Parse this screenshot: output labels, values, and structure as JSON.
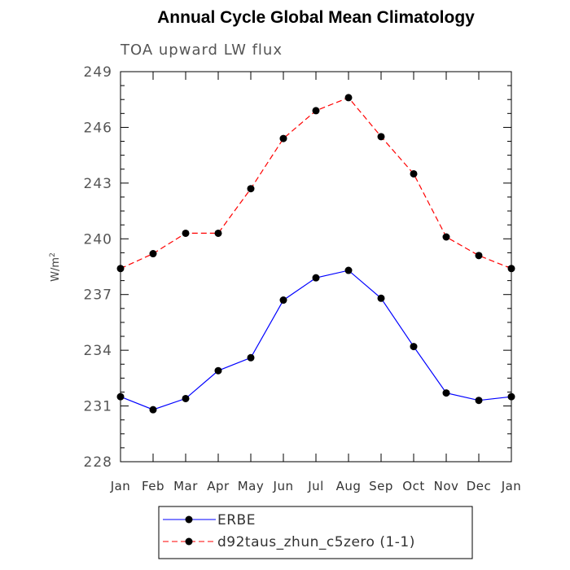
{
  "chart_data": {
    "type": "line",
    "title": "Annual Cycle Global Mean Climatology",
    "subtitle": "TOA upward LW flux",
    "ylabel": "W/m",
    "ylabel_sup": "2",
    "xlabel": "",
    "categories": [
      "Jan",
      "Feb",
      "Mar",
      "Apr",
      "May",
      "Jun",
      "Jul",
      "Aug",
      "Sep",
      "Oct",
      "Nov",
      "Dec",
      "Jan"
    ],
    "ylim": [
      228,
      249
    ],
    "yticks": [
      228,
      231,
      234,
      237,
      240,
      243,
      246,
      249
    ],
    "grid": false,
    "legend_position": "bottom",
    "series": [
      {
        "name": "ERBE",
        "color": "#0000ff",
        "line_style": "solid",
        "marker": "filled-circle",
        "values": [
          231.5,
          230.8,
          231.4,
          232.9,
          233.6,
          236.7,
          237.9,
          238.3,
          236.8,
          234.2,
          231.7,
          231.3,
          231.5
        ]
      },
      {
        "name": "d92taus_zhun_c5zero (1-1)",
        "color": "#ff0000",
        "line_style": "dashed",
        "marker": "filled-circle",
        "values": [
          238.4,
          239.2,
          240.3,
          240.3,
          242.7,
          245.4,
          246.9,
          247.6,
          245.5,
          243.5,
          240.1,
          239.1,
          238.4
        ]
      }
    ]
  }
}
